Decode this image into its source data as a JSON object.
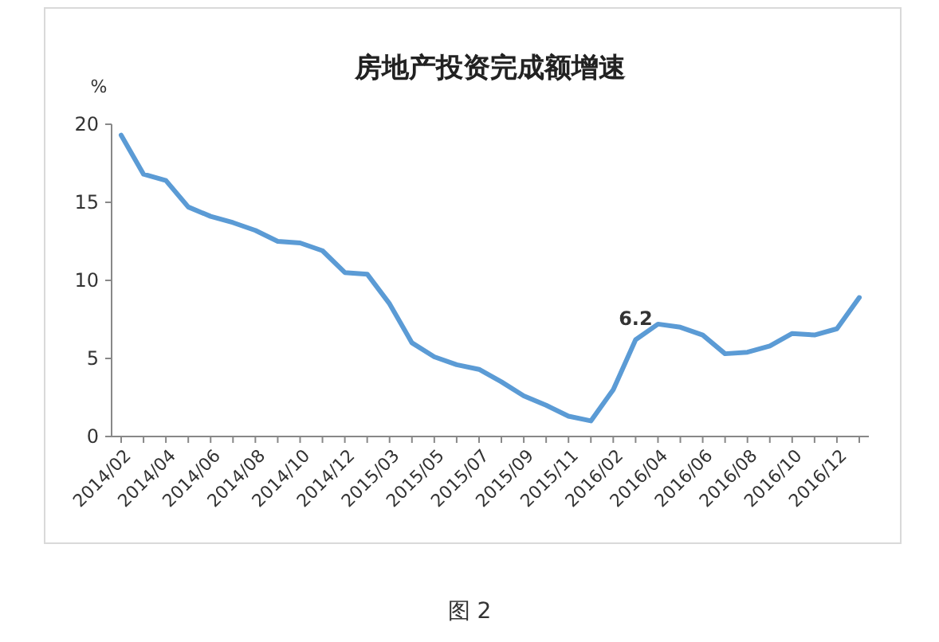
{
  "chart_data": {
    "type": "line",
    "title": "房地产投资完成额增速",
    "ylabel": "%",
    "categories": [
      "2014/02",
      null,
      "2014/04",
      null,
      "2014/06",
      null,
      "2014/08",
      null,
      "2014/10",
      null,
      "2014/12",
      null,
      "2015/03",
      null,
      "2015/05",
      null,
      "2015/07",
      null,
      "2015/09",
      null,
      "2015/11",
      null,
      "2016/02",
      null,
      "2016/04",
      null,
      "2016/06",
      null,
      "2016/08",
      null,
      "2016/10",
      null,
      "2016/12",
      null
    ],
    "series": [
      {
        "color": "#5b9bd5",
        "values": [
          19.3,
          16.8,
          16.4,
          14.7,
          14.1,
          13.7,
          13.2,
          12.5,
          12.4,
          11.9,
          10.5,
          10.4,
          8.5,
          6.0,
          5.1,
          4.6,
          4.3,
          3.5,
          2.6,
          2.0,
          1.3,
          1.0,
          3.0,
          6.2,
          7.2,
          7.0,
          6.5,
          5.3,
          5.4,
          5.8,
          6.6,
          6.5,
          6.9,
          8.9
        ],
        "value_labels": [
          null,
          null,
          null,
          null,
          null,
          null,
          null,
          null,
          null,
          null,
          null,
          null,
          null,
          null,
          null,
          null,
          null,
          null,
          null,
          null,
          null,
          null,
          null,
          "6.2",
          null,
          null,
          null,
          null,
          null,
          null,
          null,
          null,
          null,
          null
        ]
      }
    ],
    "ylim": [
      0,
      20
    ],
    "yticks": [
      0,
      5,
      10,
      15,
      20
    ],
    "grid": false,
    "marker": "none",
    "line_style": "solid",
    "annotations": [
      "图 2"
    ]
  }
}
